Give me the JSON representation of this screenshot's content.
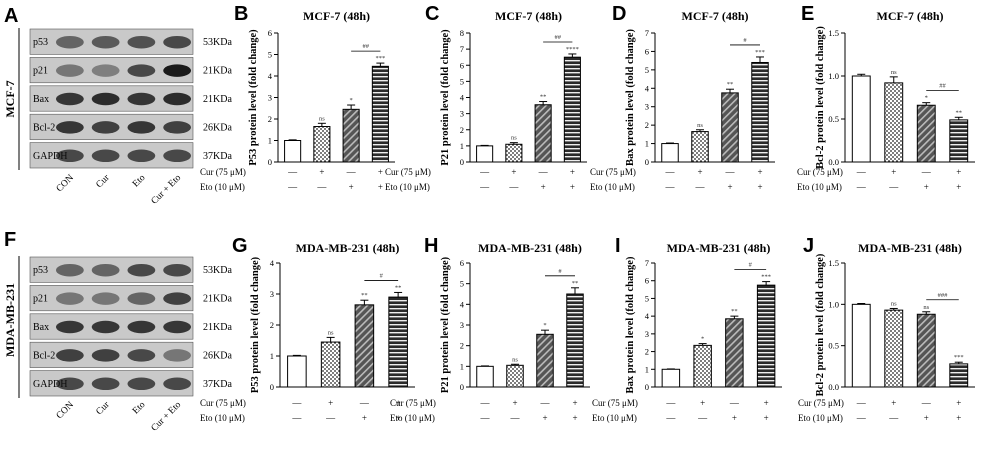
{
  "figure": {
    "cell_lines": [
      "MCF-7",
      "MDA-MB-231"
    ],
    "blot_proteins": [
      "p53",
      "p21",
      "Bax",
      "Bcl-2",
      "GAPDH"
    ],
    "blot_kda": [
      "53KDa",
      "21KDa",
      "21KDa",
      "26KDa",
      "37KDa"
    ],
    "blot_lanes": [
      "CON",
      "Cur",
      "Eto",
      "Cur + Eto"
    ],
    "blot_letters": [
      "A",
      "F"
    ],
    "cur_label": "Cur (75 μM)",
    "eto_label": "Eto (10 μM)",
    "cur_signs": [
      "—",
      "+",
      "—",
      "+"
    ],
    "eto_signs": [
      "—",
      "—",
      "+",
      "+"
    ]
  },
  "chart_data": [
    {
      "letter": "B",
      "type": "bar",
      "title": "MCF-7 (48h)",
      "ylabel": "P53 protein level (fold change)",
      "ylim": [
        0,
        6
      ],
      "yticks": [
        0,
        1,
        2,
        3,
        4,
        5,
        6
      ],
      "categories": [
        "CON",
        "Cur",
        "Eto",
        "Cur + Eto"
      ],
      "values": [
        1.0,
        1.65,
        2.45,
        4.45
      ],
      "errors": [
        0.03,
        0.15,
        0.2,
        0.15
      ],
      "markers": [
        "",
        "ns",
        "*",
        "***"
      ],
      "bracket_label": "##"
    },
    {
      "letter": "C",
      "type": "bar",
      "title": "MCF-7 (48h)",
      "ylabel": "P21 protein level (fold change)",
      "ylim": [
        0,
        8
      ],
      "yticks": [
        0,
        1,
        2,
        3,
        4,
        5,
        6,
        7,
        8
      ],
      "categories": [
        "CON",
        "Cur",
        "Eto",
        "Cur + Eto"
      ],
      "values": [
        1.0,
        1.1,
        3.55,
        6.5
      ],
      "errors": [
        0.03,
        0.1,
        0.2,
        0.2
      ],
      "markers": [
        "",
        "ns",
        "**",
        "****"
      ],
      "bracket_label": "##"
    },
    {
      "letter": "D",
      "type": "bar",
      "title": "MCF-7 (48h)",
      "ylabel": "Bax protein level (fold change)",
      "ylim": [
        0,
        7
      ],
      "yticks": [
        0,
        1,
        2,
        3,
        4,
        5,
        6,
        7
      ],
      "categories": [
        "CON",
        "Cur",
        "Eto",
        "Cur + Eto"
      ],
      "values": [
        1.0,
        1.65,
        3.75,
        5.4
      ],
      "errors": [
        0.03,
        0.1,
        0.2,
        0.3
      ],
      "markers": [
        "",
        "ns",
        "**",
        "***"
      ],
      "bracket_label": "#"
    },
    {
      "letter": "E",
      "type": "bar",
      "title": "MCF-7 (48h)",
      "ylabel": "Bcl-2 protein level (fold change)",
      "ylim": [
        0,
        1.5
      ],
      "yticks": [
        0.0,
        0.5,
        1.0,
        1.5
      ],
      "categories": [
        "CON",
        "Cur",
        "Eto",
        "Cur + Eto"
      ],
      "values": [
        1.0,
        0.92,
        0.66,
        0.49
      ],
      "errors": [
        0.02,
        0.07,
        0.03,
        0.03
      ],
      "markers": [
        "",
        "ns",
        "*",
        "**"
      ],
      "bracket_label": "##"
    },
    {
      "letter": "G",
      "type": "bar",
      "title": "MDA-MB-231 (48h)",
      "ylabel": "P53 protein level (fold change)",
      "ylim": [
        0,
        4
      ],
      "yticks": [
        0,
        1,
        2,
        3,
        4
      ],
      "categories": [
        "CON",
        "Cur",
        "Eto",
        "Cur + Eto"
      ],
      "values": [
        1.0,
        1.45,
        2.65,
        2.9
      ],
      "errors": [
        0.02,
        0.15,
        0.15,
        0.15
      ],
      "markers": [
        "",
        "ns",
        "**",
        "**"
      ],
      "bracket_label": "#"
    },
    {
      "letter": "H",
      "type": "bar",
      "title": "MDA-MB-231 (48h)",
      "ylabel": "P21 protein level (fold change)",
      "ylim": [
        0,
        6
      ],
      "yticks": [
        0,
        1,
        2,
        3,
        4,
        5,
        6
      ],
      "categories": [
        "CON",
        "Cur",
        "Eto",
        "Cur + Eto"
      ],
      "values": [
        1.0,
        1.05,
        2.55,
        4.5
      ],
      "errors": [
        0.02,
        0.05,
        0.2,
        0.3
      ],
      "markers": [
        "",
        "ns",
        "*",
        "**"
      ],
      "bracket_label": "#"
    },
    {
      "letter": "I",
      "type": "bar",
      "title": "MDA-MB-231 (48h)",
      "ylabel": "Bax protein level (fold change)",
      "ylim": [
        0,
        7
      ],
      "yticks": [
        0,
        1,
        2,
        3,
        4,
        5,
        6,
        7
      ],
      "categories": [
        "CON",
        "Cur",
        "Eto",
        "Cur + Eto"
      ],
      "values": [
        1.0,
        2.35,
        3.85,
        5.75
      ],
      "errors": [
        0.02,
        0.1,
        0.15,
        0.2
      ],
      "markers": [
        "",
        "*",
        "**",
        "***"
      ],
      "bracket_label": "#"
    },
    {
      "letter": "J",
      "type": "bar",
      "title": "MDA-MB-231 (48h)",
      "ylabel": "Bcl-2 protein level (fold change)",
      "ylim": [
        0,
        1.5
      ],
      "yticks": [
        0.0,
        0.5,
        1.0,
        1.5
      ],
      "categories": [
        "CON",
        "Cur",
        "Eto",
        "Cur + Eto"
      ],
      "values": [
        1.0,
        0.93,
        0.88,
        0.28
      ],
      "errors": [
        0.01,
        0.02,
        0.03,
        0.02
      ],
      "markers": [
        "",
        "ns",
        "ns",
        "***"
      ],
      "bracket_label": "###"
    }
  ]
}
